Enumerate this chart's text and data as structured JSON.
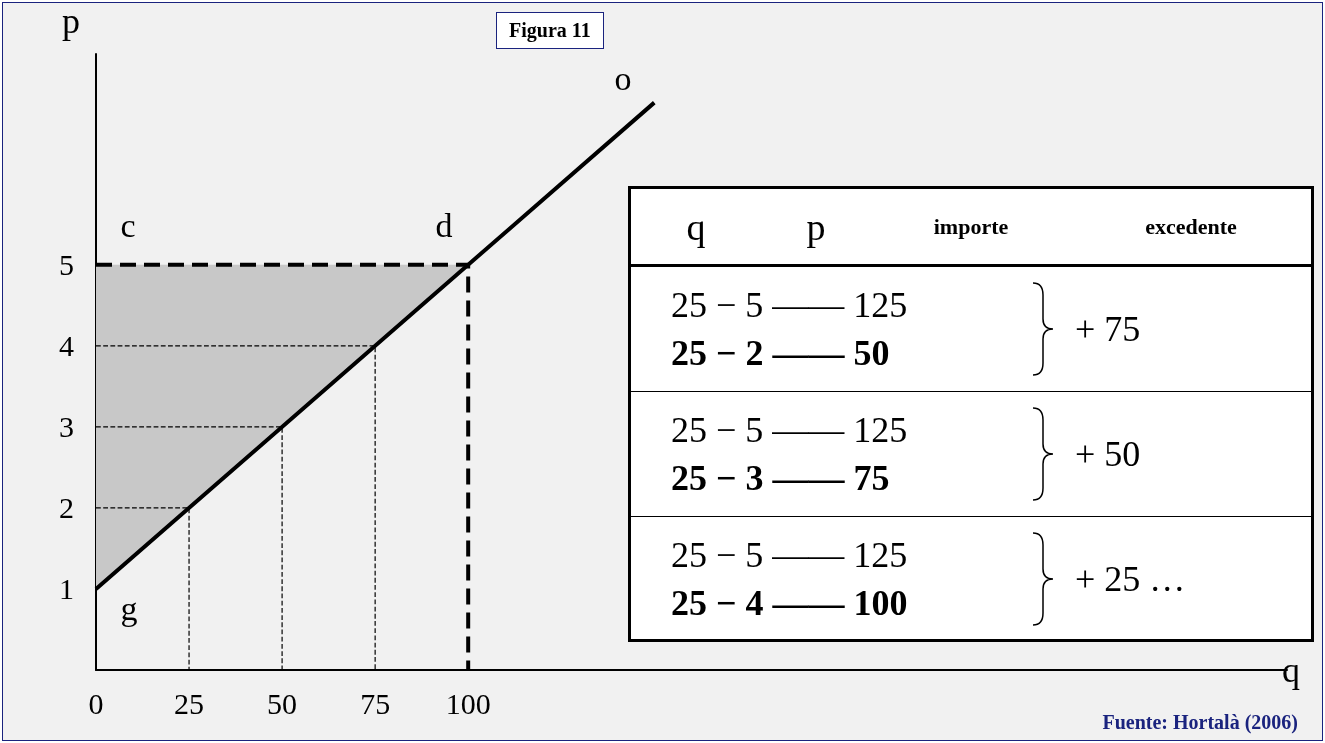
{
  "chart_data": [
    {
      "type": "line",
      "title": "Figura 11",
      "xlabel": "q",
      "ylabel": "p",
      "xlim": [
        0,
        320
      ],
      "ylim": [
        0,
        7.6
      ],
      "xticks": [
        0,
        25,
        50,
        75,
        100
      ],
      "yticks": [
        1,
        2,
        3,
        4,
        5
      ],
      "grid": false,
      "marker": "none",
      "series": [
        {
          "type": "area",
          "color": "#c8c8c8",
          "x": [
            0,
            100
          ],
          "values": [
            5,
            5
          ]
        },
        {
          "color": "#000000",
          "x": [
            0,
            100,
            150
          ],
          "values": [
            1,
            5,
            7
          ],
          "line_style": "solid"
        },
        {
          "color": "#000000",
          "x": [
            0,
            100,
            100
          ],
          "values": [
            5,
            5,
            0
          ],
          "line_style": "dashed"
        },
        {
          "color": "#000000",
          "x": [
            0,
            75,
            75
          ],
          "values": [
            4,
            4,
            0
          ],
          "line_style": "dashed"
        },
        {
          "color": "#000000",
          "x": [
            0,
            50,
            50
          ],
          "values": [
            3,
            3,
            0
          ],
          "line_style": "dashed"
        },
        {
          "color": "#000000",
          "x": [
            0,
            25,
            25
          ],
          "values": [
            2,
            2,
            0
          ],
          "line_style": "dashed"
        }
      ],
      "annotations": [
        "c",
        "d",
        "g",
        "o",
        "Fuente: Hortalà (2006)"
      ]
    },
    {
      "type": "other",
      "categories": [
        "q",
        "p",
        "importe",
        "excedente"
      ],
      "annotations": [
        "25 − 5 —— 125",
        "25 − 2 —— 50",
        "+ 75",
        "25 − 5 —— 125",
        "25 − 3 —— 75",
        "+ 50",
        "25 − 5 —— 125",
        "25 − 4 —— 100",
        "+ 25",
        "…"
      ]
    }
  ]
}
